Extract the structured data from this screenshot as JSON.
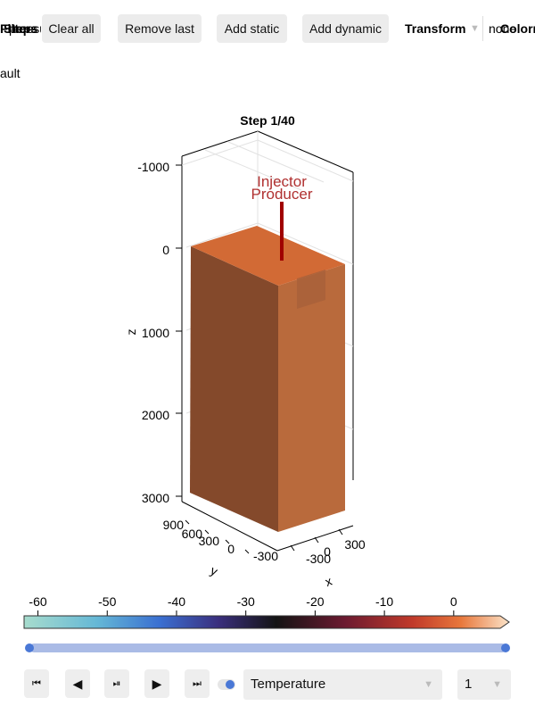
{
  "toolbar": {
    "overlap_a": "Filters",
    "overlap_b": "Steps",
    "overlap_c": "pressure_m",
    "clear_all": "Clear all",
    "remove_last": "Remove last",
    "add_static": "Add static",
    "add_dynamic": "Add dynamic",
    "transform": "Transform",
    "transform_value": "none",
    "colormap": "Colormap"
  },
  "subtitle_fragment": "ault",
  "plot": {
    "title": "Step 1/40",
    "z_label": "z",
    "x_label": "x",
    "y_label": "y",
    "z_ticks": [
      "-1000",
      "0",
      "1000",
      "2000",
      "3000"
    ],
    "y_ticks": [
      "900",
      "600",
      "300",
      "0",
      "-300"
    ],
    "x_ticks": [
      "-300",
      "0",
      "300"
    ],
    "wells": [
      {
        "name": "Injector",
        "color": "#b03030"
      },
      {
        "name": "Producer",
        "color": "#b03030"
      }
    ],
    "block_colors": {
      "top": "#d26a35",
      "front": "#84492b",
      "right": "#b96a3c"
    }
  },
  "colorbar": {
    "ticks": [
      "-60",
      "-50",
      "-40",
      "-30",
      "-20",
      "-10",
      "0"
    ],
    "tick_values": [
      -60,
      -50,
      -40,
      -30,
      -20,
      -10,
      0
    ],
    "range": [
      -62,
      8
    ]
  },
  "slider": {
    "value": 1,
    "color": "#aabbe6",
    "handle_color": "#4a78d6"
  },
  "controls": {
    "first": "⏮",
    "prev": "◀",
    "play_pause": "⏯",
    "next": "▶",
    "last": "⏭",
    "toggle_color": "#4a78d6",
    "property": "Temperature",
    "index": "1"
  }
}
